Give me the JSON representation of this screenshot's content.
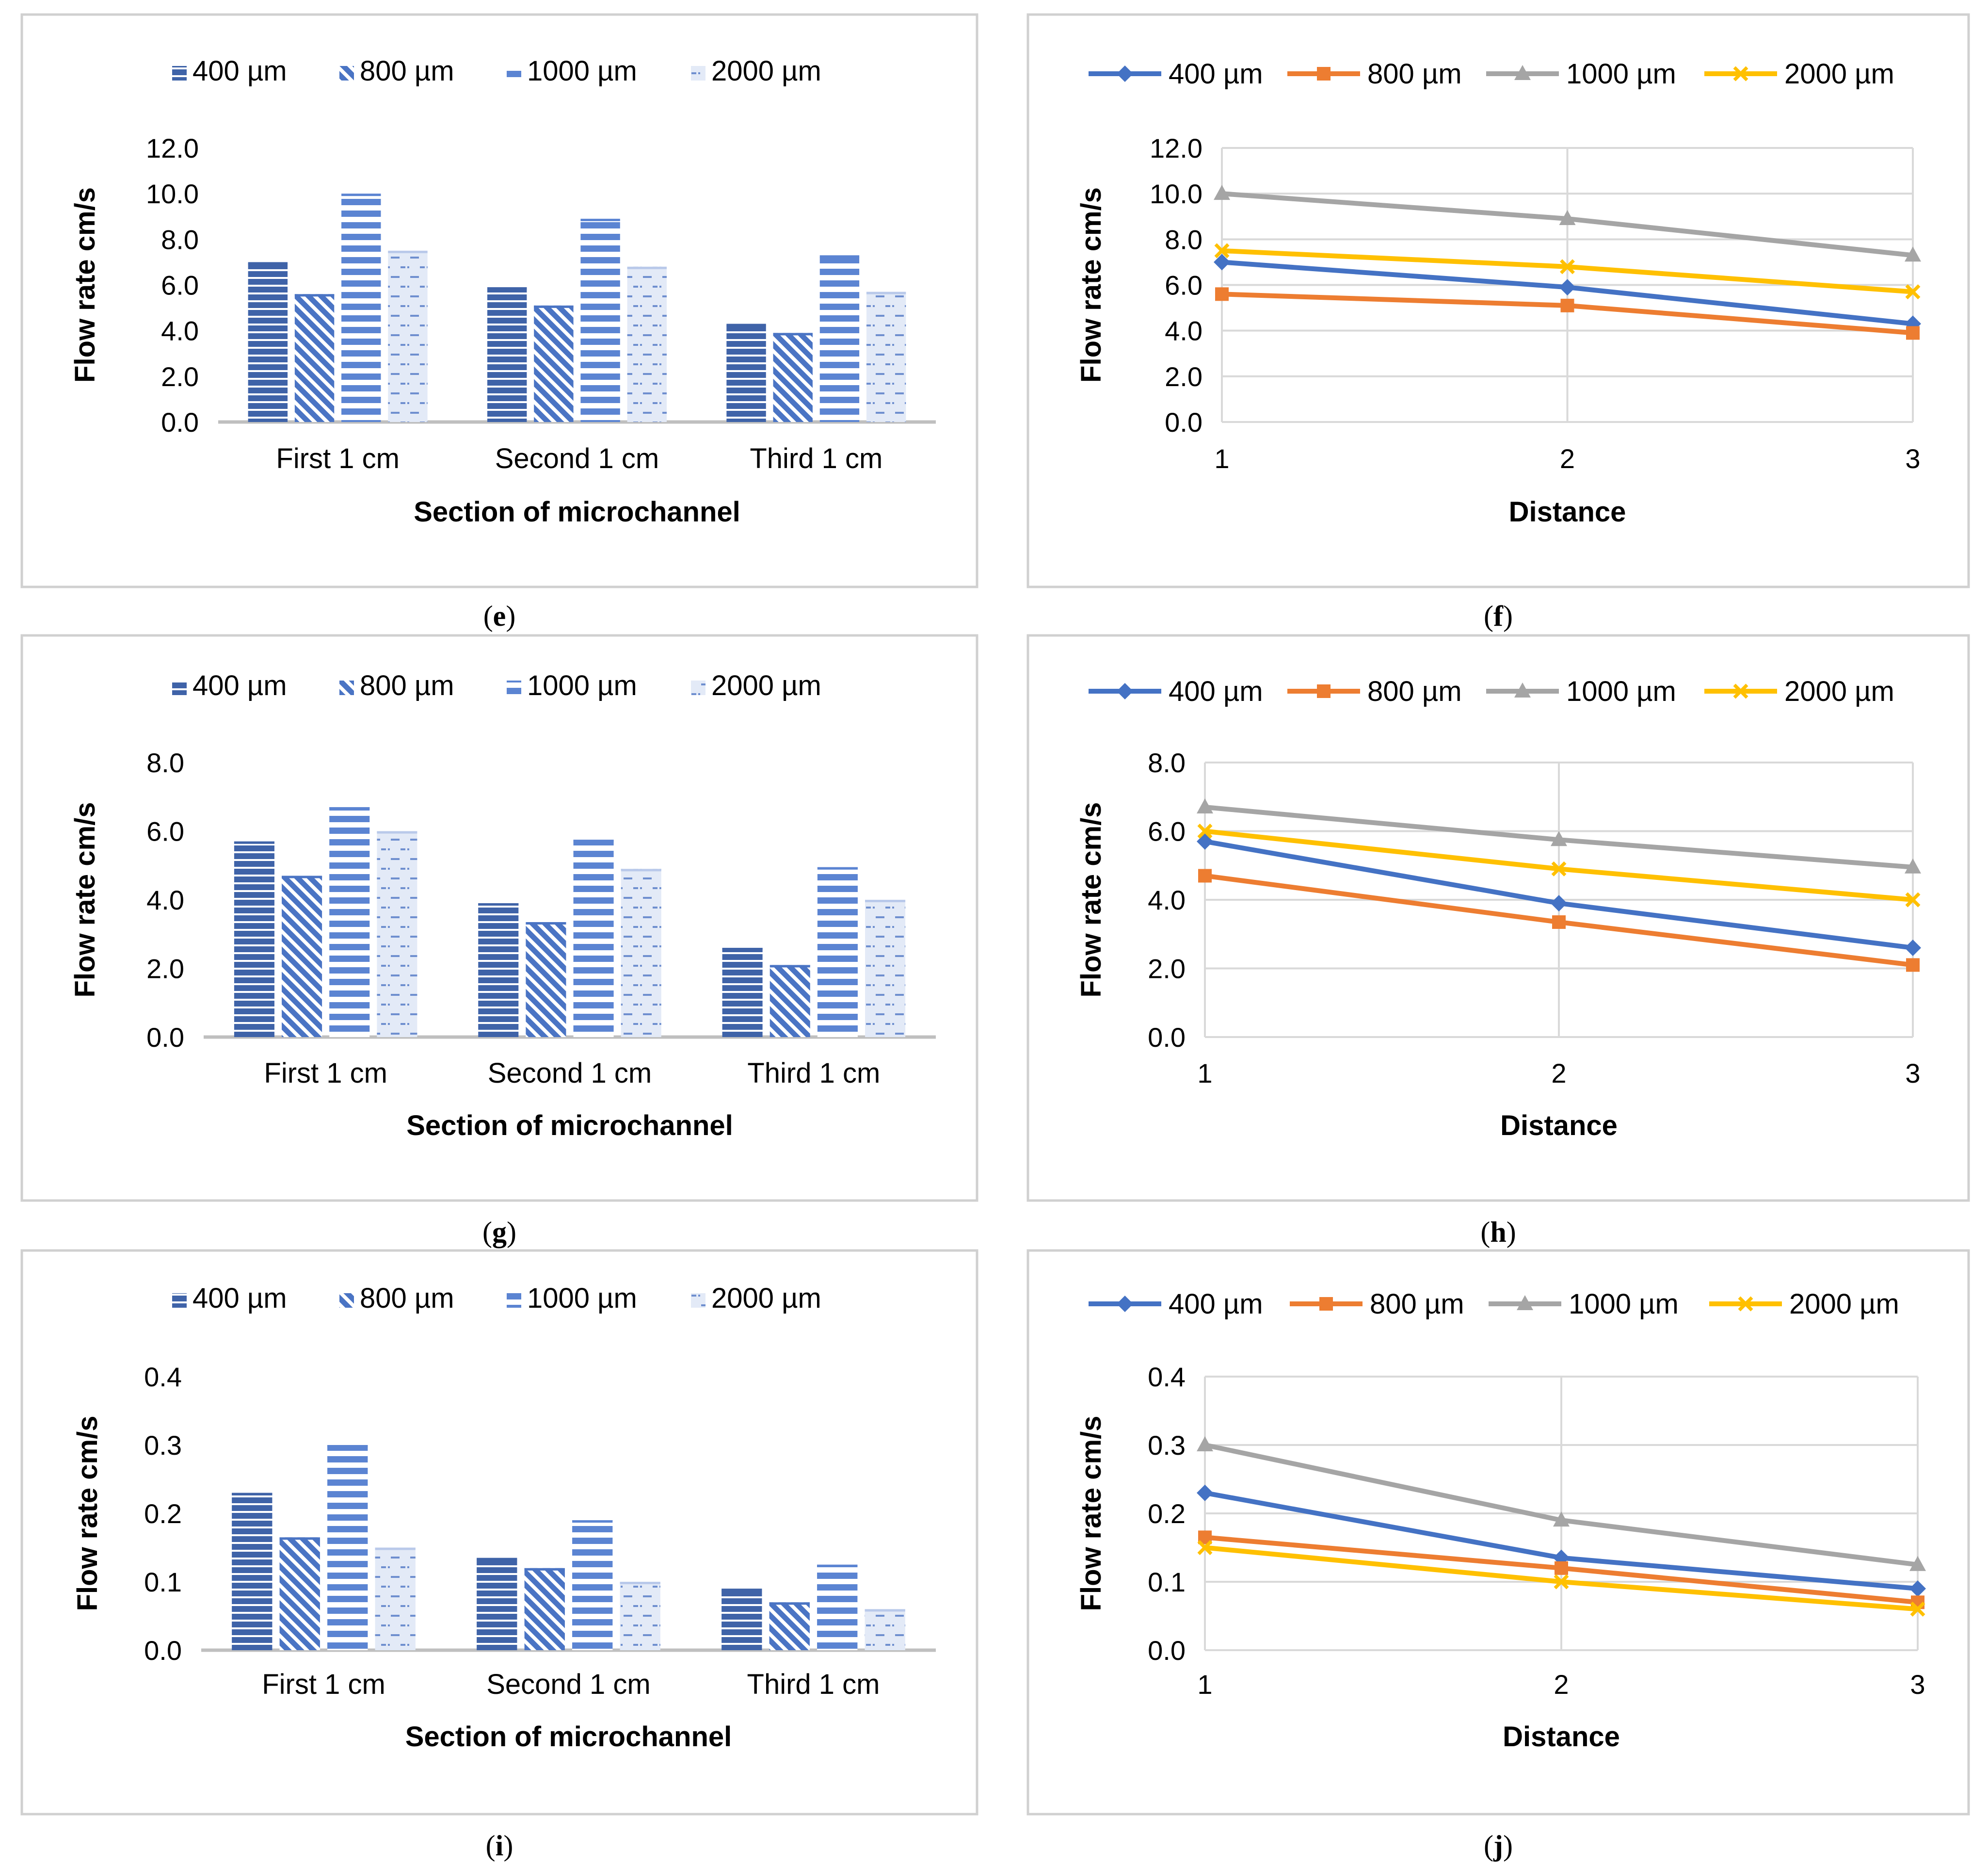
{
  "colors": {
    "bar_400": "#3f63a8",
    "bar_800": "#4a74c4",
    "bar_1000": "#5b84d2",
    "bar_2000": "#9db4e0",
    "line_400": "#4472c4",
    "line_800": "#ed7d31",
    "line_1000": "#a5a5a5",
    "line_2000": "#ffc000",
    "grid": "#d9d9d9",
    "axis": "#bfbfbf",
    "frame": "#d0d0d0"
  },
  "chart_data": [
    {
      "type": "bar",
      "caption": "e",
      "categories": [
        "First 1 cm",
        "Second 1 cm",
        "Third 1 cm"
      ],
      "series": [
        {
          "name": "400 µm",
          "values": [
            7.0,
            5.9,
            4.3
          ]
        },
        {
          "name": "800 µm",
          "values": [
            5.6,
            5.1,
            3.9
          ]
        },
        {
          "name": "1000 µm",
          "values": [
            10.0,
            8.9,
            7.3
          ]
        },
        {
          "name": "2000 µm",
          "values": [
            7.5,
            6.8,
            5.7
          ]
        }
      ],
      "xlabel": "Section of microchannel",
      "ylabel": "Flow rate cm/s",
      "ylim": [
        0,
        12
      ],
      "yticks": [
        "0.0",
        "2.0",
        "4.0",
        "6.0",
        "8.0",
        "10.0",
        "12.0"
      ],
      "legend": "top"
    },
    {
      "type": "line",
      "caption": "f",
      "x": [
        "1",
        "2",
        "3"
      ],
      "series": [
        {
          "name": "400 µm",
          "marker": "diamond",
          "values": [
            7.0,
            5.9,
            4.3
          ]
        },
        {
          "name": "800 µm",
          "marker": "square",
          "values": [
            5.6,
            5.1,
            3.9
          ]
        },
        {
          "name": "1000 µm",
          "marker": "triangle",
          "values": [
            10.0,
            8.9,
            7.3
          ]
        },
        {
          "name": "2000 µm",
          "marker": "x",
          "values": [
            7.5,
            6.8,
            5.7
          ]
        }
      ],
      "xlabel": "Distance",
      "ylabel": "Flow rate cm/s",
      "ylim": [
        0,
        12
      ],
      "yticks": [
        "0.0",
        "2.0",
        "4.0",
        "6.0",
        "8.0",
        "10.0",
        "12.0"
      ],
      "grid": true,
      "legend": "top"
    },
    {
      "type": "bar",
      "caption": "g",
      "categories": [
        "First 1 cm",
        "Second 1 cm",
        "Third 1 cm"
      ],
      "series": [
        {
          "name": "400 µm",
          "values": [
            5.7,
            3.9,
            2.6
          ]
        },
        {
          "name": "800 µm",
          "values": [
            4.7,
            3.35,
            2.1
          ]
        },
        {
          "name": "1000 µm",
          "values": [
            6.7,
            5.75,
            4.95
          ]
        },
        {
          "name": "2000 µm",
          "values": [
            6.0,
            4.9,
            4.0
          ]
        }
      ],
      "xlabel": "Section of microchannel",
      "ylabel": "Flow rate cm/s",
      "ylim": [
        0,
        8
      ],
      "yticks": [
        "0.0",
        "2.0",
        "4.0",
        "6.0",
        "8.0"
      ],
      "legend": "top"
    },
    {
      "type": "line",
      "caption": "h",
      "x": [
        "1",
        "2",
        "3"
      ],
      "series": [
        {
          "name": "400 µm",
          "marker": "diamond",
          "values": [
            5.7,
            3.9,
            2.6
          ]
        },
        {
          "name": "800 µm",
          "marker": "square",
          "values": [
            4.7,
            3.35,
            2.1
          ]
        },
        {
          "name": "1000 µm",
          "marker": "triangle",
          "values": [
            6.7,
            5.75,
            4.95
          ]
        },
        {
          "name": "2000 µm",
          "marker": "x",
          "values": [
            6.0,
            4.9,
            4.0
          ]
        }
      ],
      "xlabel": "Distance",
      "ylabel": "Flow rate cm/s",
      "ylim": [
        0,
        8
      ],
      "yticks": [
        "0.0",
        "2.0",
        "4.0",
        "6.0",
        "8.0"
      ],
      "grid": true,
      "legend": "top"
    },
    {
      "type": "bar",
      "caption": "i",
      "categories": [
        "First 1 cm",
        "Second 1 cm",
        "Third 1 cm"
      ],
      "series": [
        {
          "name": "400 µm",
          "values": [
            0.23,
            0.135,
            0.09
          ]
        },
        {
          "name": "800 µm",
          "values": [
            0.165,
            0.12,
            0.07
          ]
        },
        {
          "name": "1000 µm",
          "values": [
            0.3,
            0.19,
            0.125
          ]
        },
        {
          "name": "2000 µm",
          "values": [
            0.15,
            0.1,
            0.06
          ]
        }
      ],
      "xlabel": "Section of microchannel",
      "ylabel": "Flow rate cm/s",
      "ylim": [
        0,
        0.4
      ],
      "yticks": [
        "0.0",
        "0.1",
        "0.2",
        "0.3",
        "0.4"
      ],
      "legend": "top"
    },
    {
      "type": "line",
      "caption": "j",
      "x": [
        "1",
        "2",
        "3"
      ],
      "series": [
        {
          "name": "400 µm",
          "marker": "diamond",
          "values": [
            0.23,
            0.135,
            0.09
          ]
        },
        {
          "name": "800 µm",
          "marker": "square",
          "values": [
            0.165,
            0.12,
            0.07
          ]
        },
        {
          "name": "1000 µm",
          "marker": "triangle",
          "values": [
            0.3,
            0.19,
            0.125
          ]
        },
        {
          "name": "2000 µm",
          "marker": "x",
          "values": [
            0.15,
            0.1,
            0.06
          ]
        }
      ],
      "xlabel": "Distance",
      "ylabel": "Flow rate cm/s",
      "ylim": [
        0,
        0.4
      ],
      "yticks": [
        "0.0",
        "0.1",
        "0.2",
        "0.3",
        "0.4"
      ],
      "grid": true,
      "legend": "top"
    }
  ]
}
